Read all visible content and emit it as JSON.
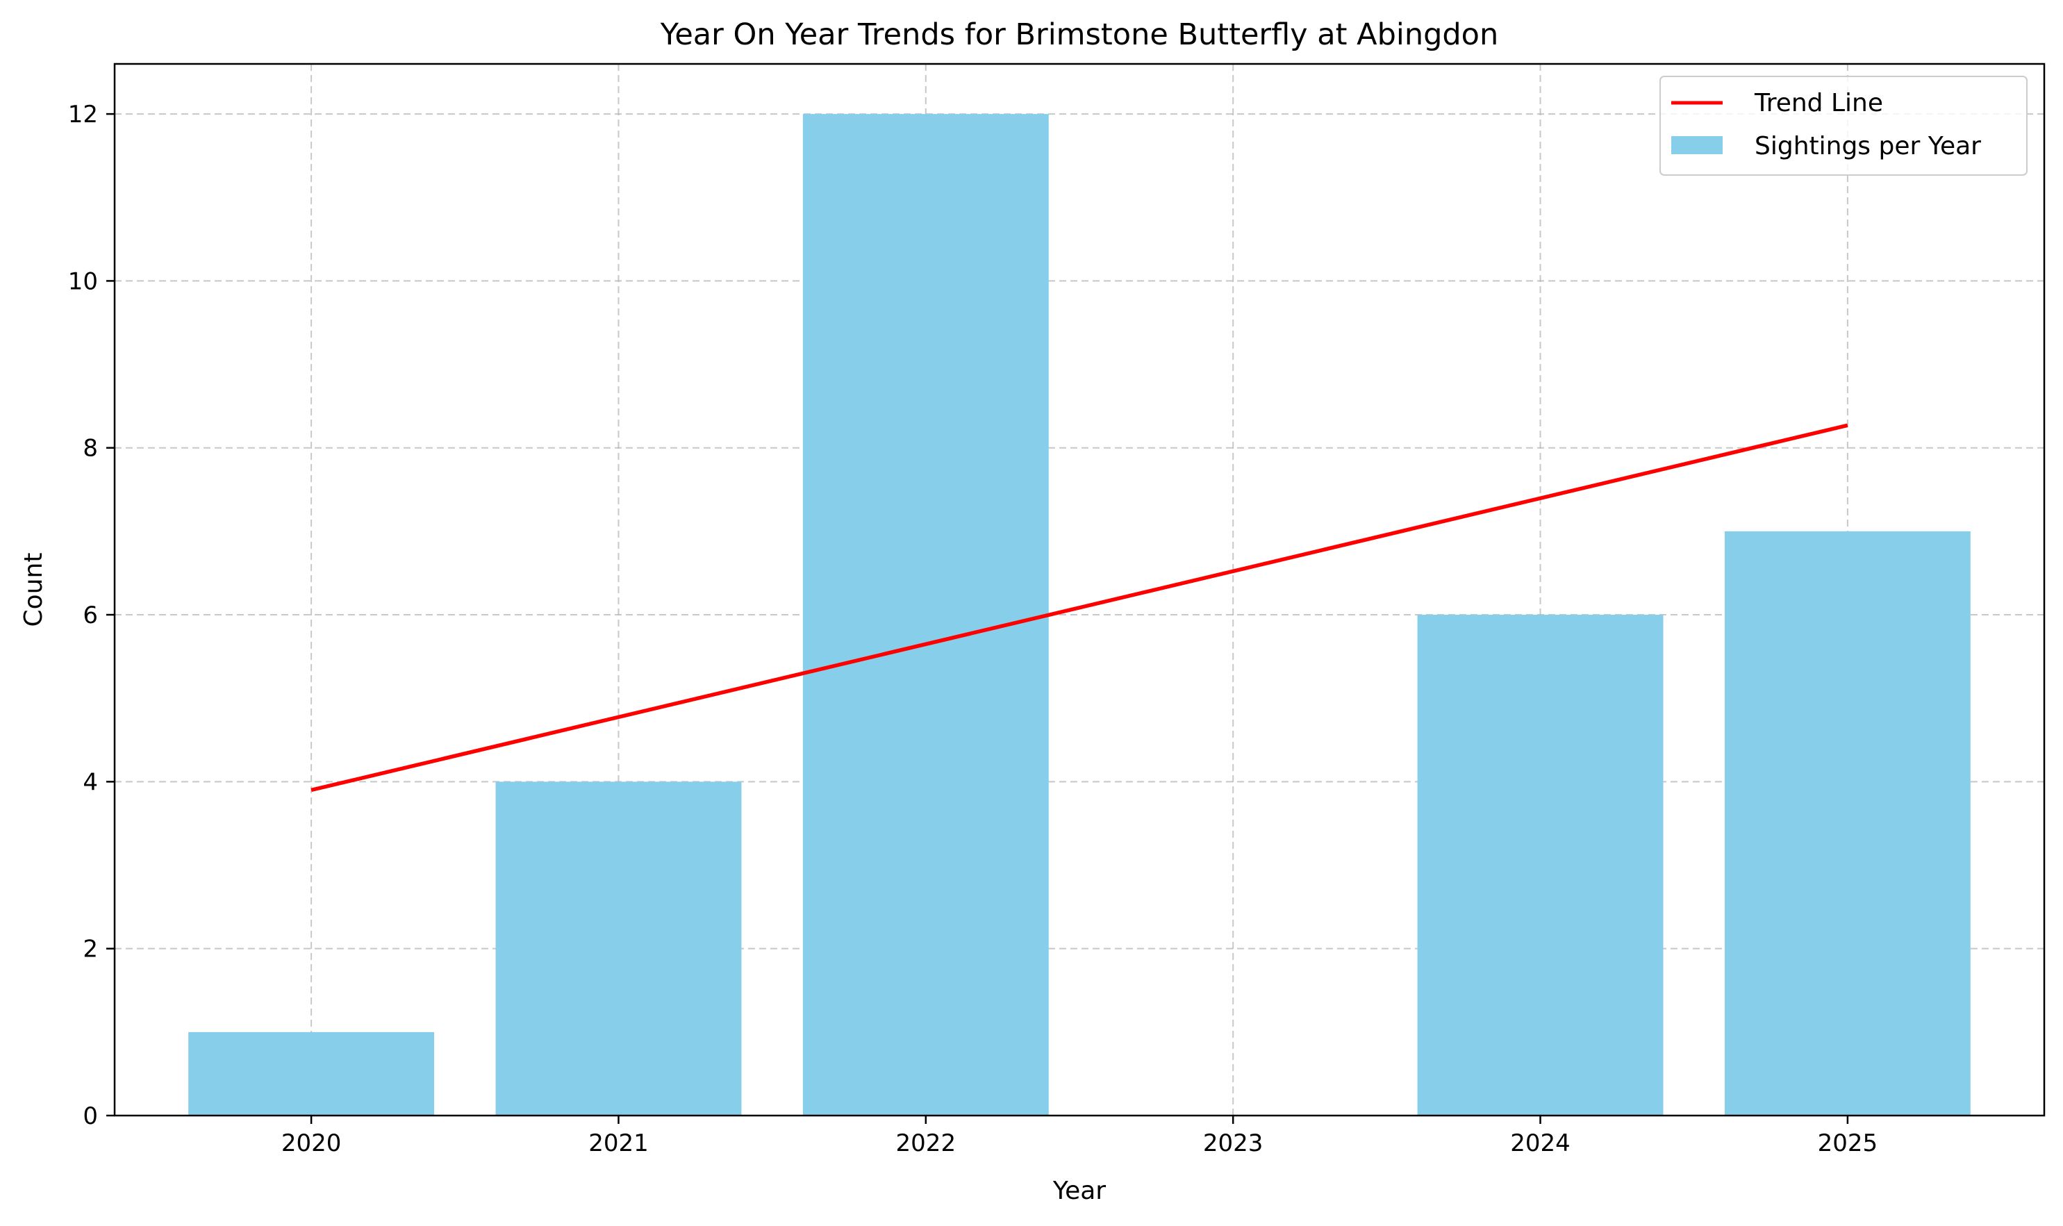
{
  "chart_data": {
    "type": "bar",
    "title": "Year On Year Trends for Brimstone Butterfly at Abingdon",
    "xlabel": "Year",
    "ylabel": "Count",
    "categories": [
      "2020",
      "2021",
      "2022",
      "2023",
      "2024",
      "2025"
    ],
    "yticks": [
      "0",
      "2",
      "4",
      "6",
      "8",
      "10",
      "12"
    ],
    "ylim": [
      0,
      12.6
    ],
    "grid": true,
    "legend_position": "top-right",
    "series": [
      {
        "name": "Sightings per Year",
        "type": "bar",
        "color": "#87ceeb",
        "values": [
          1,
          4,
          12,
          0,
          6,
          7
        ]
      },
      {
        "name": "Trend Line",
        "type": "line",
        "color": "#ff0000",
        "x": [
          "2020",
          "2025"
        ],
        "values": [
          3.9,
          8.27
        ]
      }
    ]
  }
}
